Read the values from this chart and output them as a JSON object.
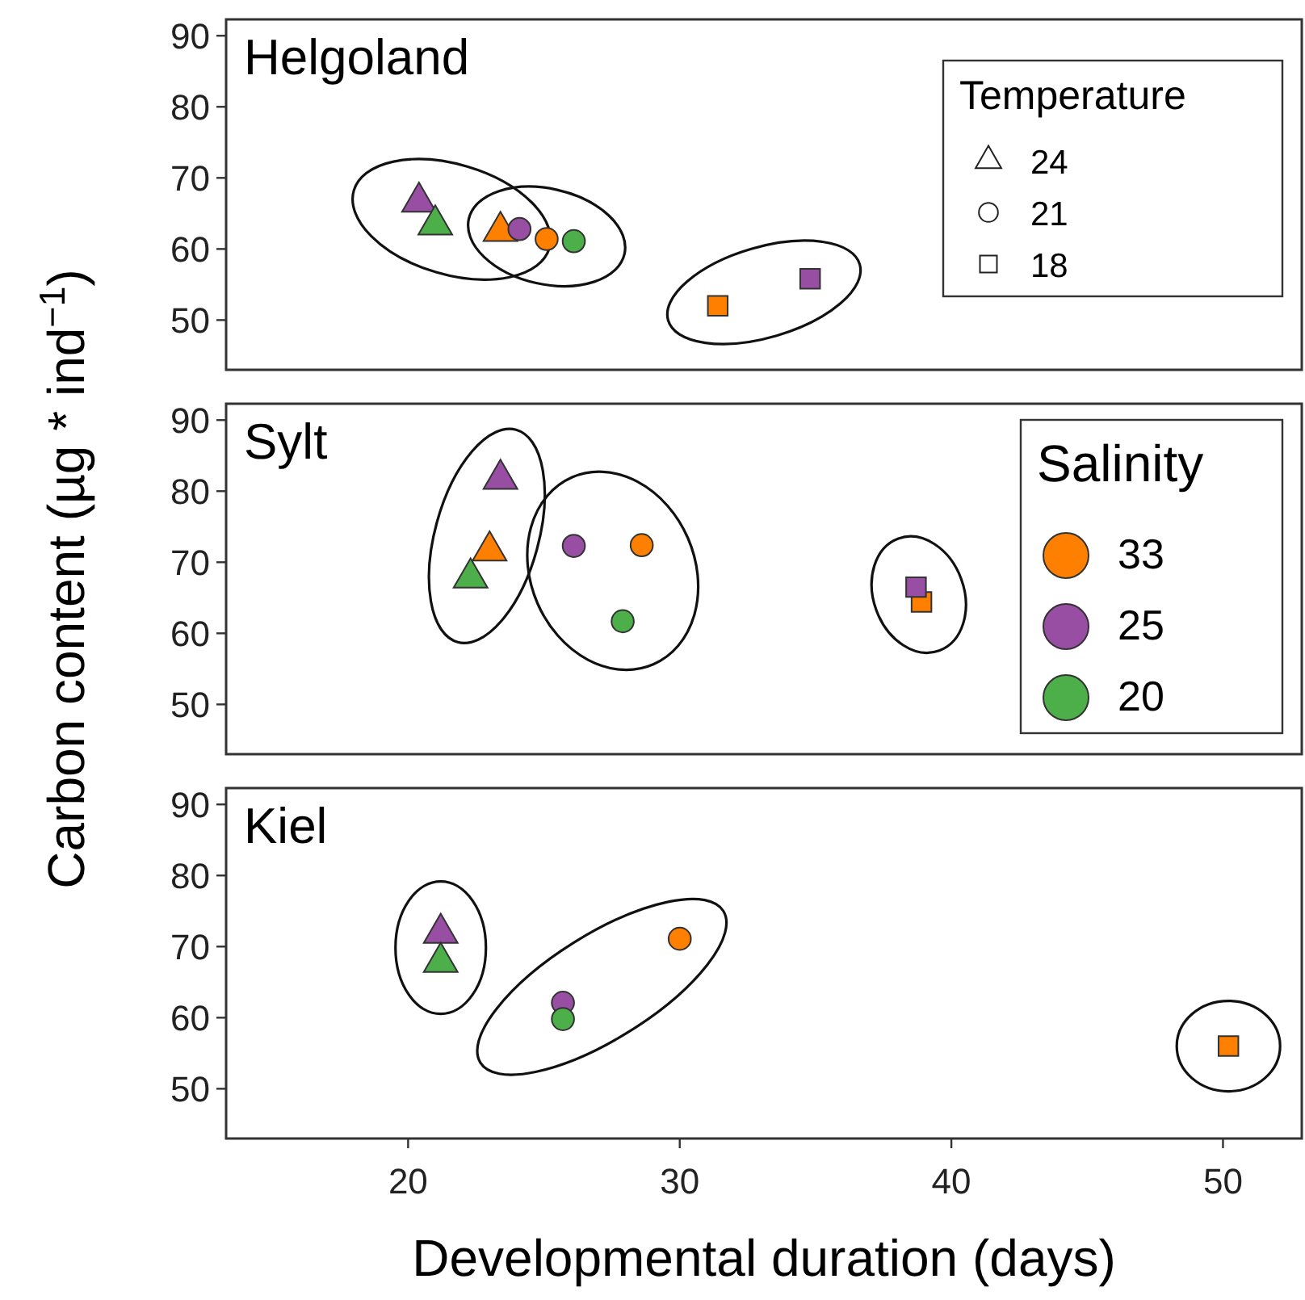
{
  "chart_data": [
    {
      "type": "scatter",
      "title": "Helgoland",
      "xlim": [
        13.3,
        52.9
      ],
      "ylim": [
        43,
        92.3
      ],
      "yticks": [
        50,
        60,
        70,
        80,
        90
      ],
      "tick_labels": "y",
      "grid": false,
      "legend": "right",
      "legend_title": "Temperature",
      "series": [
        {
          "name": "24",
          "marker": "triangle",
          "x": [
            20.4,
            21.0,
            23.4
          ],
          "values": [
            66.6,
            63.4,
            62.5
          ],
          "colors": [
            "#984ea3",
            "#4daf4a",
            "#ff7f00"
          ]
        },
        {
          "name": "21",
          "marker": "circle",
          "x": [
            24.1,
            25.1,
            26.1
          ],
          "values": [
            62.8,
            61.4,
            61.1
          ],
          "colors": [
            "#984ea3",
            "#ff7f00",
            "#4daf4a"
          ]
        },
        {
          "name": "18",
          "marker": "square",
          "x": [
            31.4,
            34.8
          ],
          "values": [
            52.0,
            55.8
          ],
          "colors": [
            "#ff7f00",
            "#984ea3"
          ]
        }
      ]
    },
    {
      "type": "scatter",
      "title": "Sylt",
      "ylabel": "Carbon content (µg * ind$^{−1}$)",
      "xlim": [
        13.3,
        52.9
      ],
      "ylim": [
        43,
        92.3
      ],
      "yticks": [
        50,
        60,
        70,
        80,
        90
      ],
      "tick_labels": "y",
      "grid": false,
      "legend": "right",
      "legend_title": "Salinity",
      "series": [
        {
          "name": "33",
          "color": "#ff7f00",
          "marker": "triangle",
          "x": [
            23.0
          ],
          "values": [
            71.6
          ]
        },
        {
          "color": "#ff7f00",
          "marker": "circle",
          "x": [
            28.6
          ],
          "values": [
            72.4
          ]
        },
        {
          "color": "#ff7f00",
          "marker": "square",
          "x": [
            38.9
          ],
          "values": [
            64.4
          ]
        },
        {
          "name": "25",
          "color": "#984ea3",
          "marker": "triangle",
          "x": [
            23.4
          ],
          "values": [
            81.7
          ]
        },
        {
          "color": "#984ea3",
          "marker": "circle",
          "x": [
            26.1
          ],
          "values": [
            72.3
          ]
        },
        {
          "color": "#984ea3",
          "marker": "square",
          "x": [
            38.7
          ],
          "values": [
            66.5
          ]
        },
        {
          "name": "20",
          "color": "#4daf4a",
          "marker": "triangle",
          "x": [
            22.3
          ],
          "values": [
            67.8
          ]
        },
        {
          "color": "#4daf4a",
          "marker": "circle",
          "x": [
            27.9
          ],
          "values": [
            61.7
          ]
        }
      ]
    },
    {
      "type": "scatter",
      "title": "Kiel",
      "xlabel": "Developmental duration (days)",
      "xlim": [
        13.3,
        52.9
      ],
      "xticks": [
        20,
        30,
        40,
        50
      ],
      "ylim": [
        43,
        92.3
      ],
      "yticks": [
        50,
        60,
        70,
        80,
        90
      ],
      "grid": false,
      "series": [
        {
          "color": "#ff7f00",
          "marker": "circle",
          "x": [
            30.0
          ],
          "values": [
            71.1
          ]
        },
        {
          "color": "#ff7f00",
          "marker": "square",
          "x": [
            50.2
          ],
          "values": [
            56.0
          ]
        },
        {
          "color": "#984ea3",
          "marker": "triangle",
          "x": [
            21.2
          ],
          "values": [
            71.9
          ]
        },
        {
          "color": "#984ea3",
          "marker": "circle",
          "x": [
            25.7
          ],
          "values": [
            62.1
          ]
        },
        {
          "color": "#4daf4a",
          "marker": "triangle",
          "x": [
            21.2
          ],
          "values": [
            67.8
          ]
        },
        {
          "color": "#4daf4a",
          "marker": "circle",
          "x": [
            25.7
          ],
          "values": [
            59.8
          ]
        }
      ]
    }
  ]
}
